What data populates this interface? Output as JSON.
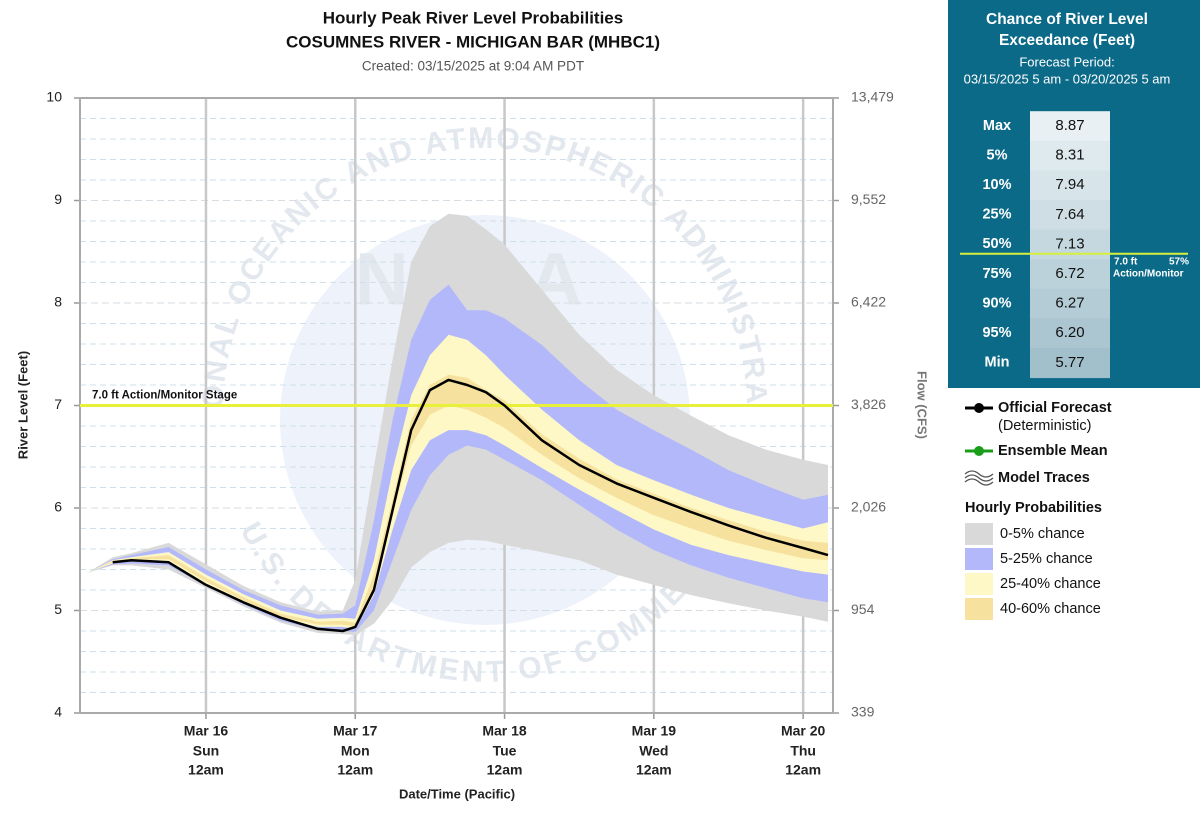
{
  "chart_data": {
    "type": "band",
    "title": "Hourly Peak River Level Probabilities",
    "subtitle": "COSUMNES RIVER - MICHIGAN BAR (MHBC1)",
    "created": "Created: 03/15/2025 at 9:04 AM PDT",
    "y_label": "River Level (Feet)",
    "y2_label": "Flow (CFS)",
    "x_label": "Date/Time (Pacific)",
    "watermark": {
      "top": "NATIONAL OCEANIC AND ATMOSPHERIC ADMINISTRATION",
      "bottom": "U.S. DEPARTMENT OF COMMERCE",
      "center": "NOAA"
    },
    "x": [
      5,
      9,
      12,
      18,
      24,
      30,
      36,
      42,
      46,
      48,
      51,
      54,
      57,
      60,
      63,
      66,
      69,
      72,
      78,
      84,
      90,
      96,
      102,
      108,
      114,
      120,
      124
    ],
    "xlim": [
      3.75,
      124.8
    ],
    "xticks": [
      {
        "value": 24,
        "label": "Mar 16",
        "day": "Sun",
        "time": "12am"
      },
      {
        "value": 48,
        "label": "Mar 17",
        "day": "Mon",
        "time": "12am"
      },
      {
        "value": 72,
        "label": "Mar 18",
        "day": "Tue",
        "time": "12am"
      },
      {
        "value": 96,
        "label": "Mar 19",
        "day": "Wed",
        "time": "12am"
      },
      {
        "value": 120,
        "label": "Mar 20",
        "day": "Thu",
        "time": "12am"
      }
    ],
    "ylim": [
      4,
      10
    ],
    "yticks": [
      4,
      5,
      6,
      7,
      8,
      9,
      10
    ],
    "y2ticks": [
      339,
      954,
      {
        "value": 2026,
        "label": "2,026"
      },
      {
        "value": 3826,
        "label": "3,826"
      },
      {
        "value": 6422,
        "label": "6,422"
      },
      {
        "value": 9552,
        "label": "9,552"
      },
      {
        "value": 13479,
        "label": "13,479"
      }
    ],
    "grid": true,
    "minor_grid_step": 0.2,
    "threshold": {
      "value": 7.0,
      "label": "7.0 ft Action/Monitor Stage",
      "color": "#e8f03a"
    },
    "probabilities_title": "Hourly Probabilities",
    "bands": [
      {
        "name": "0-5% chance",
        "color": "#d9d9d9",
        "upper": [
          5.37,
          5.52,
          5.56,
          5.66,
          5.45,
          5.24,
          5.08,
          4.99,
          5.0,
          5.3,
          6.4,
          7.45,
          8.4,
          8.75,
          8.87,
          8.85,
          8.72,
          8.57,
          8.13,
          7.69,
          7.35,
          7.1,
          6.9,
          6.71,
          6.57,
          6.47,
          6.42
        ],
        "lower": [
          5.37,
          5.44,
          5.44,
          5.4,
          5.22,
          5.04,
          4.88,
          4.78,
          4.77,
          4.76,
          4.87,
          5.1,
          5.42,
          5.57,
          5.66,
          5.69,
          5.68,
          5.64,
          5.57,
          5.49,
          5.35,
          5.25,
          5.15,
          5.07,
          5.0,
          4.94,
          4.89
        ]
      },
      {
        "name": "5-25% chance",
        "color": "#b3b8fb",
        "upper": [
          5.37,
          5.5,
          5.54,
          5.62,
          5.4,
          5.2,
          5.05,
          4.96,
          4.97,
          5.05,
          5.88,
          6.86,
          7.64,
          8.03,
          8.18,
          7.93,
          7.93,
          7.85,
          7.59,
          7.25,
          6.96,
          6.76,
          6.57,
          6.37,
          6.22,
          6.08,
          6.13
        ],
        "lower": [
          5.37,
          5.45,
          5.46,
          5.44,
          5.24,
          5.06,
          4.9,
          4.81,
          4.8,
          4.79,
          5.0,
          5.49,
          5.98,
          6.32,
          6.52,
          6.61,
          6.57,
          6.47,
          6.27,
          6.03,
          5.79,
          5.59,
          5.44,
          5.32,
          5.22,
          5.12,
          5.08
        ]
      },
      {
        "name": "25-40% chance",
        "color": "#fdf8c6",
        "upper": [
          5.37,
          5.49,
          5.52,
          5.57,
          5.35,
          5.16,
          5.0,
          4.92,
          4.93,
          4.92,
          5.49,
          6.37,
          7.1,
          7.49,
          7.69,
          7.64,
          7.49,
          7.3,
          6.96,
          6.66,
          6.42,
          6.27,
          6.13,
          6.0,
          5.9,
          5.8,
          5.86
        ],
        "lower": [
          5.37,
          5.46,
          5.48,
          5.47,
          5.26,
          5.08,
          4.92,
          4.84,
          4.84,
          4.82,
          5.15,
          5.79,
          6.37,
          6.66,
          6.76,
          6.76,
          6.71,
          6.61,
          6.39,
          6.18,
          5.98,
          5.79,
          5.64,
          5.54,
          5.46,
          5.38,
          5.35
        ]
      },
      {
        "name": "40-60% chance",
        "color": "#f6e29e",
        "upper": [
          5.37,
          5.48,
          5.51,
          5.54,
          5.32,
          5.13,
          4.97,
          4.89,
          4.9,
          4.88,
          5.35,
          6.08,
          6.86,
          7.2,
          7.3,
          7.27,
          7.15,
          7.05,
          6.72,
          6.48,
          6.28,
          6.14,
          6.0,
          5.88,
          5.77,
          5.68,
          5.66
        ],
        "lower": [
          5.37,
          5.47,
          5.5,
          5.5,
          5.28,
          5.1,
          4.94,
          4.86,
          4.86,
          4.84,
          5.17,
          5.93,
          6.61,
          6.91,
          7.0,
          6.96,
          6.88,
          6.78,
          6.52,
          6.29,
          6.1,
          5.93,
          5.8,
          5.68,
          5.59,
          5.51,
          5.49
        ]
      }
    ],
    "series": [
      {
        "name": "Official Forecast",
        "note": "(Deterministic)",
        "color": "#000000",
        "values": [
          null,
          5.47,
          5.49,
          5.47,
          5.25,
          5.08,
          4.93,
          4.82,
          4.8,
          4.84,
          5.2,
          5.98,
          6.76,
          7.15,
          7.25,
          7.2,
          7.13,
          7.0,
          6.66,
          6.42,
          6.24,
          6.1,
          5.96,
          5.83,
          5.71,
          5.61,
          5.54
        ]
      },
      {
        "name": "Ensemble Mean",
        "color": "#1a9e1a"
      },
      {
        "name": "Model Traces",
        "color": "#555555"
      }
    ]
  },
  "exceedance": {
    "title": [
      "Chance of River Level",
      "Exceedance (Feet)"
    ],
    "period_label": "Forecast Period:",
    "period": "03/15/2025 5 am - 03/20/2025 5 am",
    "rows": [
      {
        "label": "Max",
        "value": "8.87"
      },
      {
        "label": "5%",
        "value": "8.31"
      },
      {
        "label": "10%",
        "value": "7.94"
      },
      {
        "label": "25%",
        "value": "7.64"
      },
      {
        "label": "50%",
        "value": "7.13"
      },
      {
        "label": "75%",
        "value": "6.72"
      },
      {
        "label": "90%",
        "value": "6.27"
      },
      {
        "label": "95%",
        "value": "6.20"
      },
      {
        "label": "Min",
        "value": "5.77"
      }
    ],
    "threshold": {
      "value": 7.0,
      "label": "7.0 ft",
      "percent_label": "57%",
      "name": "Action/Monitor",
      "color": "#d8f03c"
    }
  }
}
